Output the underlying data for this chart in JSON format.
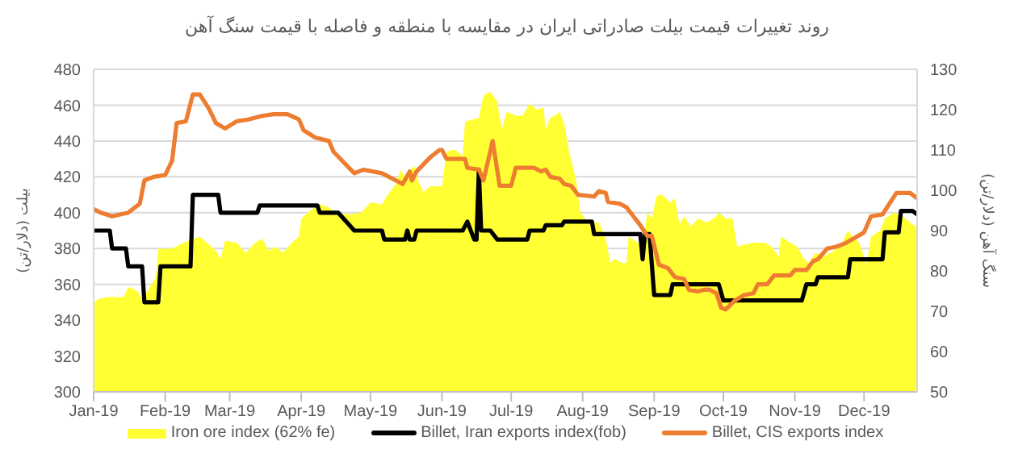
{
  "chart_data": {
    "type": "line",
    "title": "روند تغییرات قیمت بیلت صادراتی ایران در مقایسه با منطقه و فاصله با قیمت سنگ آهن",
    "ylabel": "بیلت (دلار/تن)",
    "y2label": "سنگ آهن (دلار/تن)",
    "xlim": [
      "2019-01-01",
      "2019-12-24"
    ],
    "xticks": [
      {
        "value": "2019-01-01",
        "label": "Jan-19"
      },
      {
        "value": "2019-02-01",
        "label": "Feb-19"
      },
      {
        "value": "2019-03-01",
        "label": "Mar-19"
      },
      {
        "value": "2019-04-01",
        "label": "Apr-19"
      },
      {
        "value": "2019-05-01",
        "label": "May-19"
      },
      {
        "value": "2019-06-01",
        "label": "Jun-19"
      },
      {
        "value": "2019-07-01",
        "label": "Jul-19"
      },
      {
        "value": "2019-08-01",
        "label": "Aug-19"
      },
      {
        "value": "2019-09-01",
        "label": "Sep-19"
      },
      {
        "value": "2019-10-01",
        "label": "Oct-19"
      },
      {
        "value": "2019-11-01",
        "label": "Nov-19"
      },
      {
        "value": "2019-12-01",
        "label": "Dec-19"
      }
    ],
    "ylim": [
      300,
      480
    ],
    "yticks": [
      300,
      320,
      340,
      360,
      380,
      400,
      420,
      440,
      460,
      480
    ],
    "y2lim": [
      50,
      130
    ],
    "y2ticks": [
      50,
      60,
      70,
      80,
      90,
      100,
      110,
      120,
      130
    ],
    "grid": "y",
    "legend": "bottom",
    "series": [
      {
        "name": "Iron ore index (62% fe)",
        "type": "area",
        "axis": "y2",
        "color": "#ffff33",
        "x": [
          "2019-01-01",
          "2019-01-03",
          "2019-01-07",
          "2019-01-14",
          "2019-01-16",
          "2019-01-20",
          "2019-01-22",
          "2019-01-26",
          "2019-01-28",
          "2019-01-29",
          "2019-02-04",
          "2019-02-09",
          "2019-02-16",
          "2019-02-19",
          "2019-02-23",
          "2019-02-25",
          "2019-02-27",
          "2019-03-04",
          "2019-03-08",
          "2019-03-12",
          "2019-03-15",
          "2019-03-18",
          "2019-03-21",
          "2019-03-24",
          "2019-03-28",
          "2019-03-31",
          "2019-04-01",
          "2019-04-05",
          "2019-04-09",
          "2019-04-12",
          "2019-04-16",
          "2019-04-22",
          "2019-04-27",
          "2019-05-01",
          "2019-05-06",
          "2019-05-08",
          "2019-05-12",
          "2019-05-14",
          "2019-05-16",
          "2019-05-19",
          "2019-05-20",
          "2019-05-22",
          "2019-05-24",
          "2019-05-27",
          "2019-05-30",
          "2019-06-01",
          "2019-06-03",
          "2019-06-05",
          "2019-06-07",
          "2019-06-10",
          "2019-06-11",
          "2019-06-17",
          "2019-06-19",
          "2019-06-22",
          "2019-06-25",
          "2019-06-27",
          "2019-06-29",
          "2019-07-03",
          "2019-07-06",
          "2019-07-09",
          "2019-07-12",
          "2019-07-15",
          "2019-07-16",
          "2019-07-18",
          "2019-07-20",
          "2019-07-22",
          "2019-07-24",
          "2019-07-26",
          "2019-07-29",
          "2019-07-31",
          "2019-08-02",
          "2019-08-05",
          "2019-08-08",
          "2019-08-11",
          "2019-08-13",
          "2019-08-15",
          "2019-08-18",
          "2019-08-20",
          "2019-08-21",
          "2019-08-25",
          "2019-08-27",
          "2019-08-29",
          "2019-08-31",
          "2019-09-02",
          "2019-09-04",
          "2019-09-08",
          "2019-09-10",
          "2019-09-12",
          "2019-09-14",
          "2019-09-17",
          "2019-09-20",
          "2019-09-24",
          "2019-09-28",
          "2019-09-29",
          "2019-10-02",
          "2019-10-05",
          "2019-10-07",
          "2019-10-10",
          "2019-10-14",
          "2019-10-19",
          "2019-10-22",
          "2019-10-25",
          "2019-10-26",
          "2019-10-30",
          "2019-11-02",
          "2019-11-05",
          "2019-11-07",
          "2019-11-10",
          "2019-11-13",
          "2019-11-18",
          "2019-11-21",
          "2019-11-24",
          "2019-11-26",
          "2019-11-29",
          "2019-12-02",
          "2019-12-04",
          "2019-12-08",
          "2019-12-10",
          "2019-12-14",
          "2019-12-18",
          "2019-12-22",
          "2019-12-24"
        ],
        "values": [
          72,
          73,
          73.5,
          73.5,
          76,
          75,
          73,
          76.5,
          78.5,
          85.5,
          85.5,
          87,
          88.5,
          87,
          85,
          83,
          87.5,
          87,
          84.5,
          87,
          88,
          85,
          86,
          84.5,
          87,
          88.5,
          93,
          95,
          96.5,
          96,
          94.5,
          94,
          94.5,
          97,
          96.5,
          98.5,
          101.5,
          105,
          103.5,
          105.5,
          106,
          102,
          99.5,
          101,
          101,
          101,
          109.5,
          110,
          110,
          108.5,
          117,
          118,
          123.5,
          124.5,
          122,
          115,
          119.5,
          118.5,
          118.5,
          121.5,
          120,
          120.5,
          115,
          118,
          118.5,
          119.5,
          116.5,
          110,
          103,
          94.5,
          93,
          92,
          92,
          88,
          82,
          83,
          82,
          82,
          88.5,
          87,
          86,
          94.5,
          93,
          98.5,
          99,
          97,
          98,
          91.5,
          93.5,
          91,
          93,
          92,
          93.5,
          94.5,
          93,
          93,
          86,
          86.5,
          87,
          87,
          86,
          83.5,
          88.5,
          87,
          86,
          83,
          82,
          84.5,
          83.5,
          85,
          86.5,
          90,
          88.5,
          87,
          81.5,
          88.5,
          90,
          93,
          94.5,
          93.5,
          91.5,
          91
        ]
      },
      {
        "name": "Billet, Iran exports index(fob)",
        "color": "#000000",
        "x": [
          "2019-01-01",
          "2019-01-08",
          "2019-01-09",
          "2019-01-15",
          "2019-01-16",
          "2019-01-22",
          "2019-01-23",
          "2019-01-29",
          "2019-01-30",
          "2019-02-12",
          "2019-02-13",
          "2019-02-24",
          "2019-02-25",
          "2019-03-13",
          "2019-03-14",
          "2019-04-08",
          "2019-04-09",
          "2019-04-17",
          "2019-04-24",
          "2019-05-06",
          "2019-05-07",
          "2019-05-16",
          "2019-05-17",
          "2019-05-18",
          "2019-05-20",
          "2019-05-21",
          "2019-06-10",
          "2019-06-12",
          "2019-06-15",
          "2019-06-16",
          "2019-06-17",
          "2019-06-18",
          "2019-06-22",
          "2019-06-25",
          "2019-07-08",
          "2019-07-09",
          "2019-07-15",
          "2019-07-16",
          "2019-07-23",
          "2019-07-24",
          "2019-08-05",
          "2019-08-06",
          "2019-08-26",
          "2019-08-27",
          "2019-08-28",
          "2019-08-30",
          "2019-09-01",
          "2019-09-08",
          "2019-09-09",
          "2019-09-29",
          "2019-10-01",
          "2019-11-04",
          "2019-11-06",
          "2019-11-10",
          "2019-11-11",
          "2019-11-24",
          "2019-11-25",
          "2019-12-09",
          "2019-12-10",
          "2019-12-16",
          "2019-12-17",
          "2019-12-22",
          "2019-12-24"
        ],
        "values": [
          390,
          390,
          380,
          380,
          370,
          370,
          350,
          350,
          370,
          370,
          410,
          410,
          400,
          400,
          404,
          404,
          400,
          400,
          390,
          390,
          385,
          385,
          390,
          385,
          385,
          390,
          390,
          395,
          385,
          385,
          424,
          390,
          390,
          385,
          385,
          390,
          390,
          393,
          393,
          395,
          395,
          388,
          388,
          374,
          388,
          388,
          354,
          354,
          360,
          360,
          351,
          351,
          360,
          360,
          364,
          364,
          374,
          374,
          389,
          389,
          401,
          401,
          399
        ]
      },
      {
        "name": "Billet, CIS exports index",
        "color": "#ed7d31",
        "x": [
          "2019-01-01",
          "2019-01-04",
          "2019-01-09",
          "2019-01-16",
          "2019-01-21",
          "2019-01-23",
          "2019-01-27",
          "2019-02-01",
          "2019-02-04",
          "2019-02-06",
          "2019-02-10",
          "2019-02-13",
          "2019-02-16",
          "2019-02-20",
          "2019-02-23",
          "2019-02-27",
          "2019-03-04",
          "2019-03-09",
          "2019-03-15",
          "2019-03-20",
          "2019-03-26",
          "2019-03-31",
          "2019-04-02",
          "2019-04-07",
          "2019-04-13",
          "2019-04-15",
          "2019-04-24",
          "2019-04-28",
          "2019-05-06",
          "2019-05-12",
          "2019-05-15",
          "2019-05-18",
          "2019-05-19",
          "2019-05-21",
          "2019-05-27",
          "2019-05-31",
          "2019-06-01",
          "2019-06-03",
          "2019-06-11",
          "2019-06-12",
          "2019-06-17",
          "2019-06-19",
          "2019-06-23",
          "2019-06-26",
          "2019-07-01",
          "2019-07-03",
          "2019-07-11",
          "2019-07-14",
          "2019-07-16",
          "2019-07-18",
          "2019-07-22",
          "2019-07-24",
          "2019-07-27",
          "2019-07-30",
          "2019-08-06",
          "2019-08-08",
          "2019-08-11",
          "2019-08-12",
          "2019-08-17",
          "2019-08-20",
          "2019-08-23",
          "2019-08-26",
          "2019-08-29",
          "2019-08-31",
          "2019-09-03",
          "2019-09-07",
          "2019-09-10",
          "2019-09-14",
          "2019-09-16",
          "2019-09-20",
          "2019-09-23",
          "2019-09-25",
          "2019-09-28",
          "2019-09-30",
          "2019-10-02",
          "2019-10-06",
          "2019-10-10",
          "2019-10-14",
          "2019-10-16",
          "2019-10-20",
          "2019-10-23",
          "2019-10-30",
          "2019-11-01",
          "2019-11-06",
          "2019-11-09",
          "2019-11-11",
          "2019-11-15",
          "2019-11-19",
          "2019-11-23",
          "2019-11-27",
          "2019-12-01",
          "2019-12-04",
          "2019-12-09",
          "2019-12-12",
          "2019-12-15",
          "2019-12-21",
          "2019-12-23",
          "2019-12-24"
        ],
        "values": [
          402,
          400,
          398,
          400,
          405,
          418,
          420,
          421,
          429,
          450,
          451,
          466,
          466,
          458,
          450,
          447,
          451,
          452,
          454,
          455,
          455,
          452,
          446,
          442,
          440,
          434,
          422,
          424,
          422,
          418,
          416,
          423,
          418,
          423,
          431,
          435,
          435,
          430,
          430,
          425,
          424,
          418,
          440,
          415,
          415,
          425,
          425,
          423,
          424,
          420,
          419,
          416,
          415,
          410,
          409,
          412,
          411,
          406,
          405,
          403,
          398,
          393,
          387,
          387,
          371,
          369,
          364,
          363,
          357,
          356,
          357,
          357,
          355,
          347,
          346,
          351,
          354,
          355,
          360,
          360,
          365,
          365,
          368,
          368,
          373,
          374,
          380,
          381,
          383,
          386,
          389,
          398,
          399,
          405,
          411,
          411,
          409,
          408
        ]
      }
    ]
  }
}
